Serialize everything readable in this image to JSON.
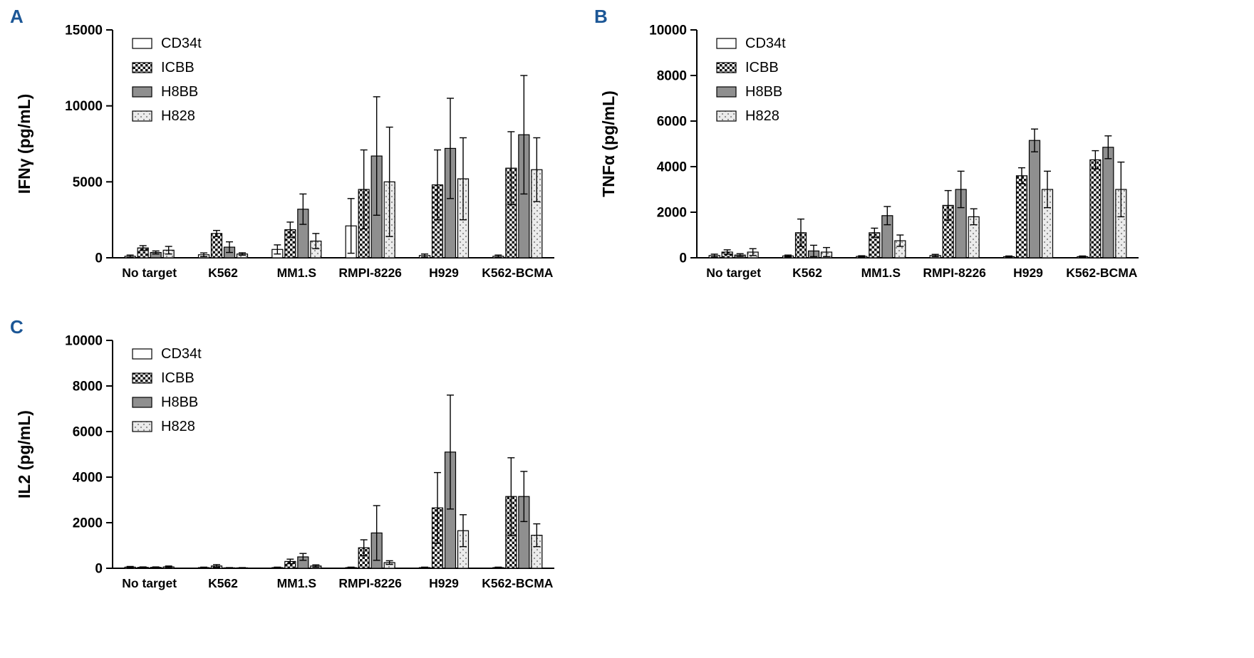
{
  "figure": {
    "background": "#ffffff",
    "accent_blue": "#1c5796",
    "panel_letters": [
      "A",
      "B",
      "C"
    ]
  },
  "style": {
    "bar_solid_gray": "#8f8f8f",
    "bar_dots_bg": "#ebebeb",
    "bar_dots_dot": "#8a8a8a",
    "checker_color": "#161616",
    "bar_outline": "#000000",
    "axis_color": "#000000"
  },
  "chart_data": [
    {
      "type": "bar",
      "panel": "A",
      "title": "",
      "xlabel": "",
      "ylabel": "IFNγ (pg/mL)",
      "ylim": [
        0,
        15000
      ],
      "yticks": [
        0,
        5000,
        10000,
        15000
      ],
      "grid": false,
      "legend_position": "top-left",
      "error_bars": "sd",
      "categories": [
        "No target",
        "K562",
        "MM1.S",
        "RMPI-8226",
        "H929",
        "K562-BCMA"
      ],
      "series": [
        {
          "name": "CD34t",
          "fill": "white",
          "values": [
            100,
            200,
            550,
            2100,
            150,
            100
          ],
          "errors": [
            80,
            120,
            300,
            1800,
            100,
            80
          ]
        },
        {
          "name": "ICBB",
          "fill": "checker",
          "values": [
            650,
            1600,
            1850,
            4500,
            4800,
            5900
          ],
          "errors": [
            150,
            200,
            500,
            2600,
            2300,
            2400
          ]
        },
        {
          "name": "H8BB",
          "fill": "solid",
          "values": [
            350,
            700,
            3200,
            6700,
            7200,
            8100
          ],
          "errors": [
            100,
            350,
            1000,
            3900,
            3300,
            3900
          ]
        },
        {
          "name": "H828",
          "fill": "dots",
          "values": [
            500,
            250,
            1100,
            5000,
            5200,
            5800
          ],
          "errors": [
            250,
            80,
            500,
            3600,
            2700,
            2100
          ]
        }
      ]
    },
    {
      "type": "bar",
      "panel": "B",
      "title": "",
      "xlabel": "",
      "ylabel": "TNFα (pg/mL)",
      "ylim": [
        0,
        10000
      ],
      "yticks": [
        0,
        2000,
        4000,
        6000,
        8000,
        10000
      ],
      "grid": false,
      "legend_position": "top-left",
      "error_bars": "sd",
      "categories": [
        "No target",
        "K562",
        "MM1.S",
        "RMPI-8226",
        "H929",
        "K562-BCMA"
      ],
      "series": [
        {
          "name": "CD34t",
          "fill": "white",
          "values": [
            100,
            80,
            60,
            100,
            50,
            50
          ],
          "errors": [
            60,
            40,
            30,
            50,
            30,
            30
          ]
        },
        {
          "name": "ICBB",
          "fill": "checker",
          "values": [
            250,
            1100,
            1100,
            2300,
            3600,
            4300
          ],
          "errors": [
            100,
            600,
            200,
            650,
            350,
            400
          ]
        },
        {
          "name": "H8BB",
          "fill": "solid",
          "values": [
            120,
            300,
            1850,
            3000,
            5150,
            4850
          ],
          "errors": [
            60,
            250,
            400,
            800,
            500,
            500
          ]
        },
        {
          "name": "H828",
          "fill": "dots",
          "values": [
            250,
            250,
            750,
            1800,
            3000,
            3000
          ],
          "errors": [
            150,
            200,
            250,
            350,
            800,
            1200
          ]
        }
      ]
    },
    {
      "type": "bar",
      "panel": "C",
      "title": "",
      "xlabel": "",
      "ylabel": "IL2 (pg/mL)",
      "ylim": [
        0,
        10000
      ],
      "yticks": [
        0,
        2000,
        4000,
        6000,
        8000,
        10000
      ],
      "grid": false,
      "legend_position": "top-left",
      "error_bars": "sd",
      "categories": [
        "No target",
        "K562",
        "MM1.S",
        "RMPI-8226",
        "H929",
        "K562-BCMA"
      ],
      "series": [
        {
          "name": "CD34t",
          "fill": "white",
          "values": [
            50,
            30,
            30,
            30,
            30,
            30
          ],
          "errors": [
            30,
            20,
            20,
            20,
            20,
            20
          ]
        },
        {
          "name": "ICBB",
          "fill": "checker",
          "values": [
            40,
            100,
            300,
            900,
            2650,
            3150
          ],
          "errors": [
            20,
            60,
            100,
            350,
            1550,
            1700
          ]
        },
        {
          "name": "H8BB",
          "fill": "solid",
          "values": [
            40,
            20,
            500,
            1550,
            5100,
            3150
          ],
          "errors": [
            20,
            10,
            150,
            1200,
            2500,
            1100
          ]
        },
        {
          "name": "H828",
          "fill": "dots",
          "values": [
            60,
            20,
            100,
            250,
            1650,
            1450
          ],
          "errors": [
            40,
            10,
            50,
            80,
            700,
            500
          ]
        }
      ]
    }
  ]
}
